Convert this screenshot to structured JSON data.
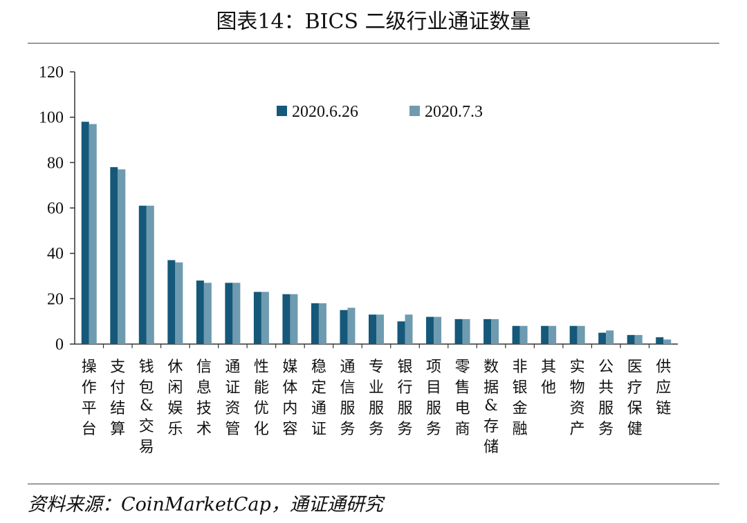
{
  "title": "图表14：BICS 二级行业通证数量",
  "source": "资料来源：CoinMarketCap，通证通研究",
  "colors": {
    "series1": "#15587a",
    "series2": "#6e9bb0"
  },
  "chart_data": {
    "type": "bar",
    "title": "图表14：BICS 二级行业通证数量",
    "xlabel": "",
    "ylabel": "",
    "ylim": [
      0,
      120
    ],
    "yticks": [
      0,
      20,
      40,
      60,
      80,
      100,
      120
    ],
    "grid": false,
    "legend": "top-center",
    "categories": [
      "操作平台",
      "支付结算",
      "钱包&交易",
      "休闲娱乐",
      "信息技术",
      "通证资管",
      "性能优化",
      "媒体内容",
      "稳定通证",
      "通信服务",
      "专业服务",
      "银行服务",
      "项目服务",
      "零售电商",
      "数据&存储",
      "非银金融",
      "其他",
      "实物资产",
      "公共服务",
      "医疗保健",
      "供应链"
    ],
    "series": [
      {
        "name": "2020.6.26",
        "values": [
          98,
          78,
          61,
          37,
          28,
          27,
          23,
          22,
          18,
          15,
          13,
          10,
          12,
          11,
          11,
          8,
          8,
          8,
          5,
          4,
          3
        ]
      },
      {
        "name": "2020.7.3",
        "values": [
          97,
          77,
          61,
          36,
          27,
          27,
          23,
          22,
          18,
          16,
          13,
          13,
          12,
          11,
          11,
          8,
          8,
          8,
          6,
          4,
          2
        ]
      }
    ]
  }
}
